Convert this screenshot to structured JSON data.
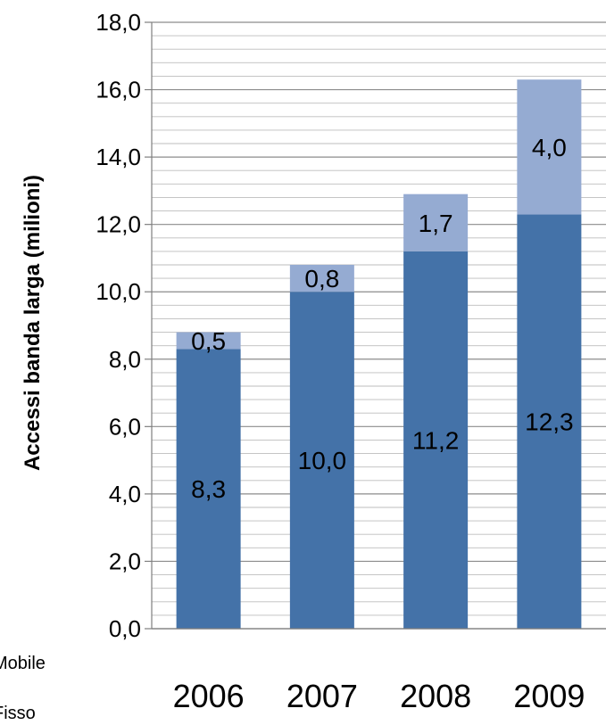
{
  "chart_data": {
    "type": "bar",
    "stacked": true,
    "categories": [
      "2006",
      "2007",
      "2008",
      "2009"
    ],
    "series": [
      {
        "name": "Fisso",
        "values": [
          8.3,
          10.0,
          11.2,
          12.3
        ],
        "labels": [
          "8,3",
          "10,0",
          "11,2",
          "12,3"
        ],
        "color": "#4472a8"
      },
      {
        "name": "Mobile",
        "values": [
          0.5,
          0.8,
          1.7,
          4.0
        ],
        "labels": [
          "0,5",
          "0,8",
          "1,7",
          "4,0"
        ],
        "color": "#95abd2"
      }
    ],
    "title": "",
    "xlabel": "",
    "ylabel": "Accessi banda larga  (milioni)",
    "ylim": [
      0,
      18
    ],
    "y_ticks": [
      "0,0",
      "2,0",
      "4,0",
      "6,0",
      "8,0",
      "10,0",
      "12,0",
      "14,0",
      "16,0",
      "18,0"
    ],
    "grid": true,
    "legend": [
      {
        "label": "Mobile"
      },
      {
        "label": "Fisso"
      }
    ],
    "legend_placement": "bottom-left"
  }
}
